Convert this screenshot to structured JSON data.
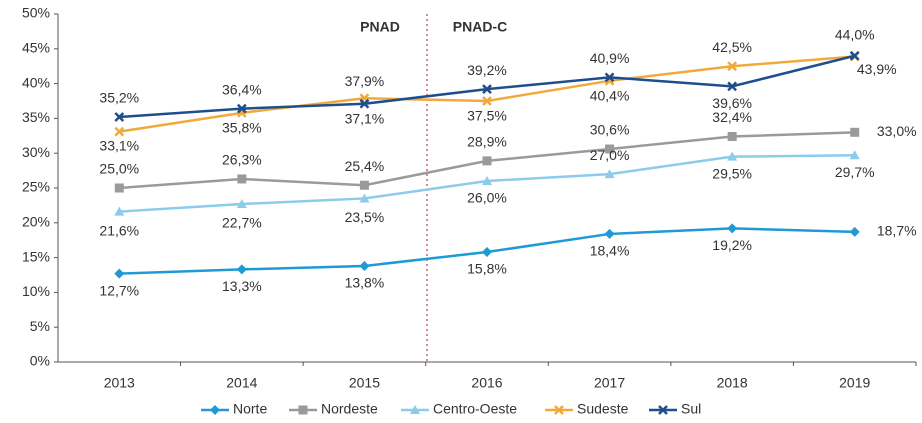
{
  "chart_data": {
    "type": "line",
    "annotations": [
      "PNAD",
      "PNAD-C"
    ],
    "categories": [
      "2013",
      "2014",
      "2015",
      "2016",
      "2017",
      "2018",
      "2019"
    ],
    "ylim": [
      0,
      50
    ],
    "yticks": [
      {
        "value": 0,
        "label": "0%"
      },
      {
        "value": 5,
        "label": "5%"
      },
      {
        "value": 10,
        "label": "10%"
      },
      {
        "value": 15,
        "label": "15%"
      },
      {
        "value": 20,
        "label": "20%"
      },
      {
        "value": 25,
        "label": "25%"
      },
      {
        "value": 30,
        "label": "30%"
      },
      {
        "value": 35,
        "label": "35%"
      },
      {
        "value": 40,
        "label": "40%"
      },
      {
        "value": 45,
        "label": "45%"
      },
      {
        "value": 50,
        "label": "50%"
      }
    ],
    "legend": "bottom",
    "series": [
      {
        "name": "Norte",
        "color": "#1f9ad6",
        "marker": "diamond",
        "values": [
          12.7,
          13.3,
          13.8,
          15.8,
          18.4,
          19.2,
          18.7
        ],
        "value_labels": [
          "12,7%",
          "13,3%",
          "13,8%",
          "15,8%",
          "18,4%",
          "19,2%",
          "18,7%"
        ]
      },
      {
        "name": "Nordeste",
        "color": "#9a9a9a",
        "marker": "square",
        "values": [
          25.0,
          26.3,
          25.4,
          28.9,
          30.6,
          32.4,
          33.0
        ],
        "value_labels": [
          "25,0%",
          "26,3%",
          "25,4%",
          "28,9%",
          "30,6%",
          "32,4%",
          "33,0%"
        ]
      },
      {
        "name": "Centro-Oeste",
        "color": "#8ccbea",
        "marker": "triangle",
        "values": [
          21.6,
          22.7,
          23.5,
          26.0,
          27.0,
          29.5,
          29.7
        ],
        "value_labels": [
          "21,6%",
          "22,7%",
          "23,5%",
          "26,0%",
          "27,0%",
          "29,5%",
          "29,7%"
        ]
      },
      {
        "name": "Sudeste",
        "color": "#f2a93b",
        "marker": "x",
        "values": [
          33.1,
          35.8,
          37.9,
          37.5,
          40.4,
          42.5,
          43.9
        ],
        "value_labels": [
          "33,1%",
          "35,8%",
          "37,9%",
          "37,5%",
          "40,4%",
          "42,5%",
          "43,9%"
        ]
      },
      {
        "name": "Sul",
        "color": "#1f4e8c",
        "marker": "x",
        "values": [
          35.2,
          36.4,
          37.1,
          39.2,
          40.9,
          39.6,
          44.0
        ],
        "value_labels": [
          "35,2%",
          "36,4%",
          "37,1%",
          "39,2%",
          "40,9%",
          "39,6%",
          "44,0%"
        ]
      }
    ]
  }
}
